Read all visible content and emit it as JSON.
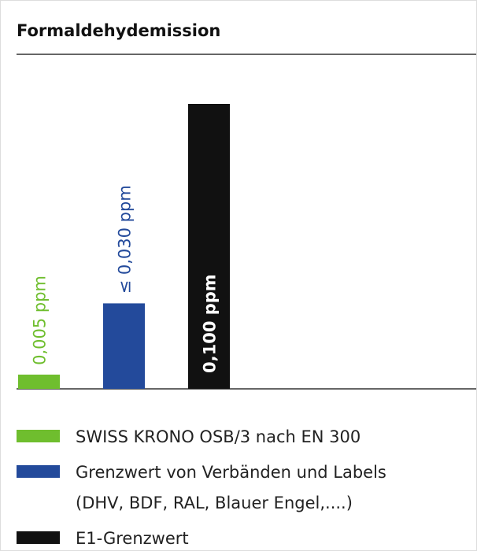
{
  "chart_data": {
    "type": "bar",
    "title": "Formaldehydemission",
    "series": [
      {
        "name": "SWISS KRONO OSB/3 nach EN 300",
        "color": "#6fbe2e",
        "values": [
          0.005
        ],
        "value_labels": [
          "0,005 ppm"
        ]
      },
      {
        "name": "Grenzwert von Verbänden und Labels\n(DHV, BDF, RAL, Blauer Engel,....)",
        "color": "#234a9b",
        "values": [
          0.03
        ],
        "value_labels": [
          "≤ 0,030 ppm"
        ]
      },
      {
        "name": "E1-Grenzwert",
        "color": "#111111",
        "values": [
          0.1
        ],
        "value_labels": [
          "0,100 ppm"
        ]
      }
    ]
  }
}
